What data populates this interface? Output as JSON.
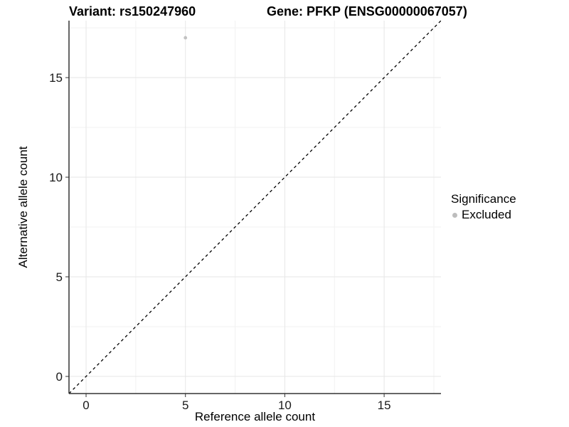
{
  "header": {
    "variant_title": "Variant: rs150247960",
    "gene_title": "Gene: PFKP (ENSG00000067057)"
  },
  "chart_data": {
    "type": "scatter",
    "title": "Variant: rs150247960    Gene: PFKP (ENSG00000067057)",
    "xlabel": "Reference allele count",
    "ylabel": "Alternative allele count",
    "xlim": [
      -0.86,
      17.86
    ],
    "ylim": [
      -0.86,
      17.86
    ],
    "x_ticks": [
      0,
      5,
      10,
      15
    ],
    "y_ticks": [
      0,
      5,
      10,
      15
    ],
    "x_minor_ticks": [
      2.5,
      7.5,
      12.5,
      17.5
    ],
    "y_minor_ticks": [
      2.5,
      7.5,
      12.5,
      17.5
    ],
    "grid": "major+minor",
    "points": [
      {
        "x": 5,
        "y": 17,
        "series": "Excluded"
      }
    ],
    "reference_line": {
      "kind": "identity",
      "style": "dashed",
      "color": "#000000"
    },
    "legend": {
      "title": "Significance",
      "position": "right",
      "items": [
        {
          "label": "Excluded",
          "color": "#bdbdbd"
        }
      ]
    },
    "colors": {
      "point": "#c2c2c2",
      "grid_major": "#e6e6e6",
      "grid_minor": "#f2f2f2",
      "axis_line": "#333333",
      "tick_text": "#1a1a1a",
      "background": "#ffffff"
    }
  }
}
